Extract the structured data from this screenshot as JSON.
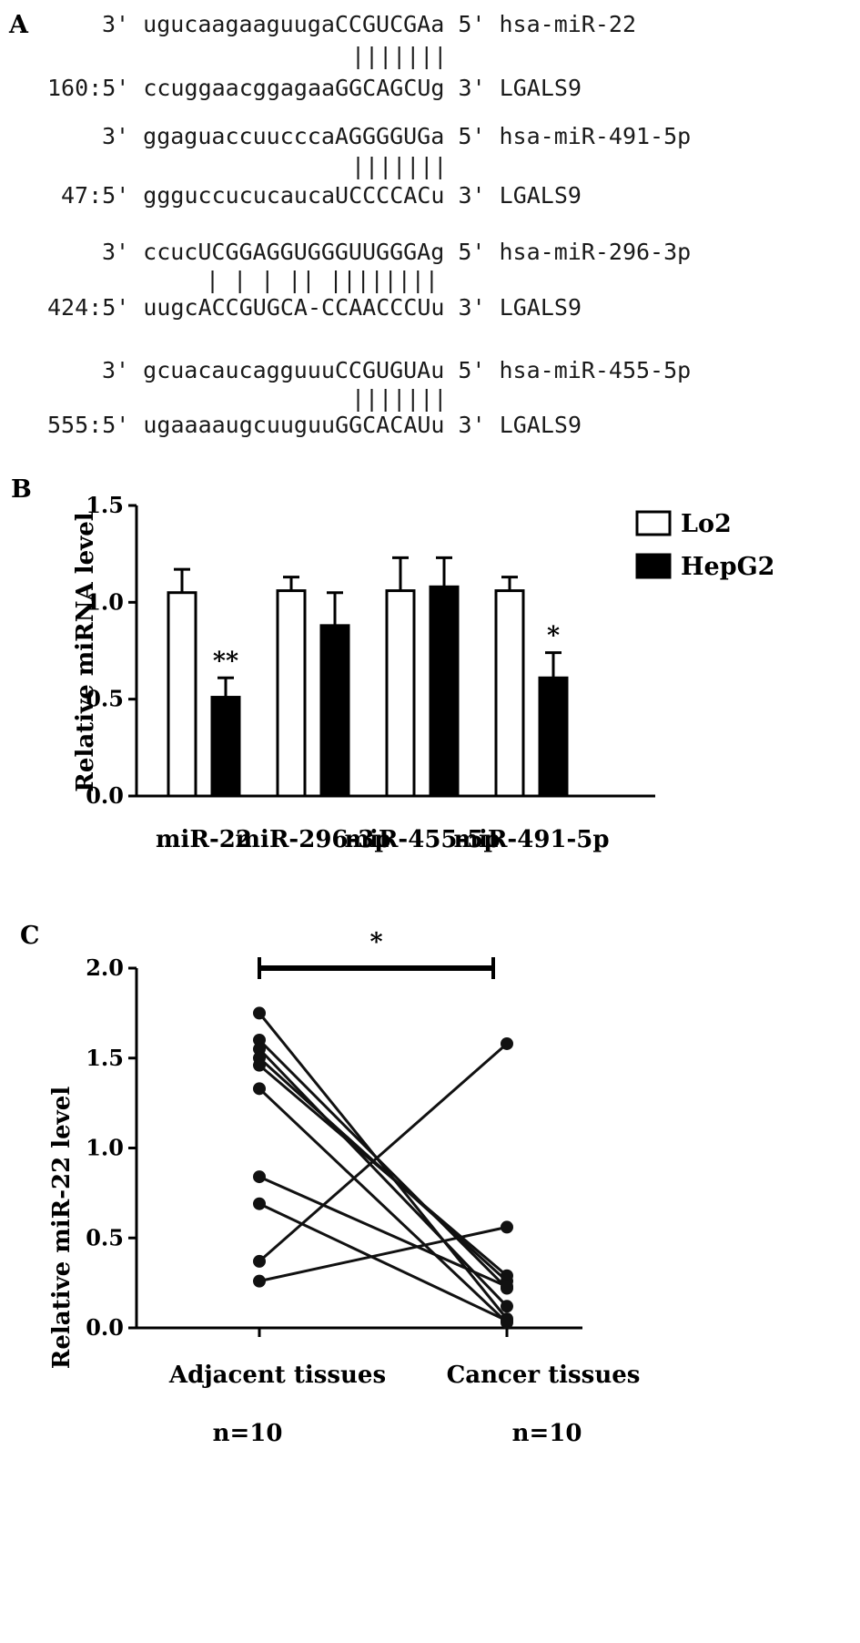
{
  "panel_a": {
    "letter": "A",
    "alignments": [
      {
        "mirna_line": "3' ugucaagaaguugaCCGUCGAa 5' hsa-miR-22",
        "pairing": "|||||||",
        "target_line": "160:5' ccuggaacggagaaGGCAGCUg 3' LGALS9"
      },
      {
        "mirna_line": "3' ggaguaccuucccaAGGGGUGa 5' hsa-miR-491-5p",
        "pairing": "|||||||",
        "target_line": "47:5' ggguccucucaucaUCCCCACu 3' LGALS9"
      },
      {
        "mirna_line": "3' ccucUCGGAGGUGGGUUGGGAg 5' hsa-miR-296-3p",
        "pairing": "| | | || ||||||||",
        "target_line": "424:5' uugcACCGUGCA-CCAACCCUu 3' LGALS9"
      },
      {
        "mirna_line": "3' gcuacaucagguuuCCGUGUAu 5' hsa-miR-455-5p",
        "pairing": "|||||||",
        "target_line": "555:5' ugaaaaugcuuguuGGCACAUu 3' LGALS9"
      }
    ]
  },
  "panel_b": {
    "letter": "B",
    "chart_data": {
      "type": "bar",
      "ylabel": "Relative miRNA level",
      "ylim": [
        0,
        1.5
      ],
      "yticks": [
        "0.0",
        "0.5",
        "1.0",
        "1.5"
      ],
      "categories": [
        "miR-22",
        "miR-296-3p",
        "miR-455-5p",
        "miR-491-5p"
      ],
      "series": [
        {
          "name": "Lo2",
          "values": [
            1.05,
            1.06,
            1.06,
            1.06
          ],
          "errors": [
            0.12,
            0.07,
            0.17,
            0.07
          ],
          "color": "#ffffff"
        },
        {
          "name": "HepG2",
          "values": [
            0.51,
            0.88,
            1.08,
            0.61
          ],
          "errors": [
            0.1,
            0.17,
            0.15,
            0.13
          ],
          "color": "#000000"
        }
      ],
      "significance": [
        {
          "category": 0,
          "series": 1,
          "label": "**"
        },
        {
          "category": 3,
          "series": 1,
          "label": "*"
        }
      ],
      "legend_position": "top-right"
    }
  },
  "panel_c": {
    "letter": "C",
    "chart_data": {
      "type": "line",
      "ylabel": "Relative miR-22 level",
      "ylim": [
        0,
        2.0
      ],
      "yticks": [
        "0.0",
        "0.5",
        "1.0",
        "1.5",
        "2.0"
      ],
      "groups": [
        {
          "label": "Adjacent tissues",
          "n_label": "n=10"
        },
        {
          "label": "Cancer tissues",
          "n_label": "n=10"
        }
      ],
      "pairs": [
        [
          1.75,
          0.05
        ],
        [
          1.6,
          0.22
        ],
        [
          1.55,
          0.12
        ],
        [
          1.5,
          0.26
        ],
        [
          1.46,
          0.29
        ],
        [
          1.33,
          0.03
        ],
        [
          0.84,
          0.23
        ],
        [
          0.69,
          0.04
        ],
        [
          0.37,
          1.58
        ],
        [
          0.26,
          0.56
        ]
      ],
      "significance_label": "*"
    }
  }
}
